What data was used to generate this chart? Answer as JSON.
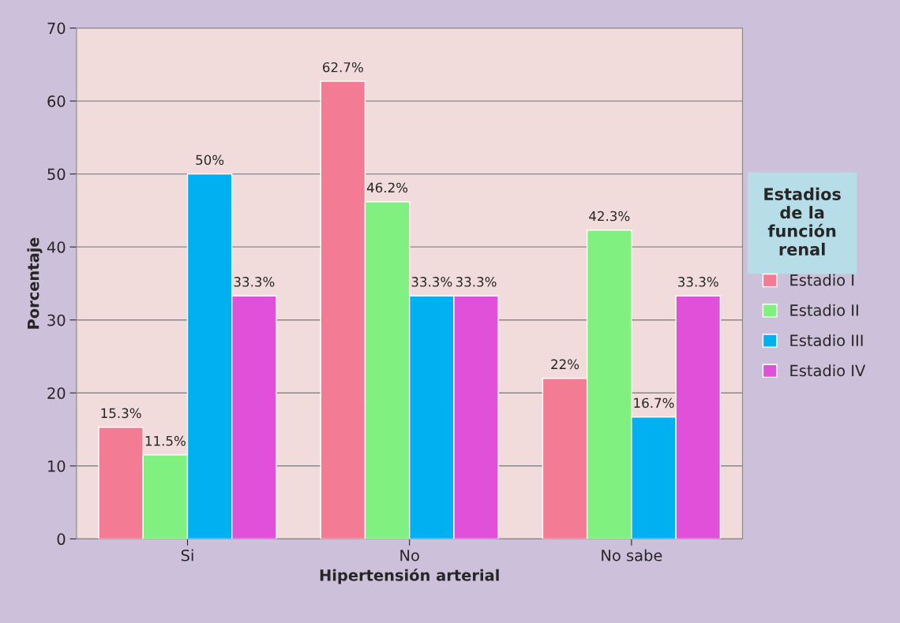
{
  "chart_data": {
    "type": "bar",
    "xlabel": "Hipertensión arterial",
    "ylabel": "Porcentaje",
    "legend_title": "Estadios\nde la\nfunción\nrenal",
    "categories": [
      "Si",
      "No",
      "No sabe"
    ],
    "series": [
      {
        "name": "Estadio I",
        "color": "#f47b94",
        "values": [
          15.3,
          62.7,
          22
        ],
        "value_labels": [
          "15.3%",
          "62.7%",
          "22%"
        ]
      },
      {
        "name": "Estadio II",
        "color": "#80f080",
        "values": [
          11.5,
          46.2,
          42.3
        ],
        "value_labels": [
          "11.5%",
          "46.2%",
          "42.3%"
        ]
      },
      {
        "name": "Estadio III",
        "color": "#00b0f0",
        "values": [
          50,
          33.3,
          16.7
        ],
        "value_labels": [
          "50%",
          "33.3%",
          "16.7%"
        ]
      },
      {
        "name": "Estadio IV",
        "color": "#e050d8",
        "values": [
          33.3,
          33.3,
          33.3
        ],
        "value_labels": [
          "33.3%",
          "33.3%",
          "33.3%"
        ]
      }
    ],
    "ylim": [
      0,
      70
    ],
    "yticks": [
      0,
      10,
      20,
      30,
      40,
      50,
      60,
      70
    ],
    "grid": "y",
    "legend": "right"
  }
}
